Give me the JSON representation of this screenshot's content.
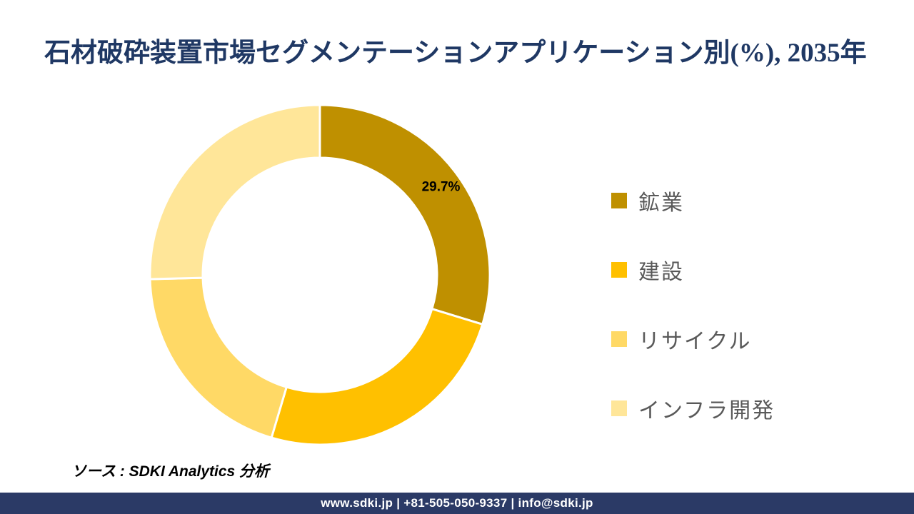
{
  "title": {
    "text": "石材破砕装置市場セグメンテーションアプリケーション別(%), 2035年",
    "color": "#1F3864"
  },
  "chart_data": {
    "type": "pie",
    "subtype": "donut",
    "title": "石材破砕装置市場セグメンテーションアプリケーション別(%), 2035年",
    "categories": [
      "鉱業",
      "建設",
      "リサイクル",
      "インフラ開発"
    ],
    "values": [
      29.7,
      24.9,
      20.0,
      25.4
    ],
    "unit": "%",
    "colors": [
      "#BF9000",
      "#FFC000",
      "#FFD966",
      "#FFE699"
    ],
    "data_labels": [
      "29.7%",
      "",
      "",
      ""
    ],
    "start_angle_deg": 0,
    "direction": "clockwise",
    "inner_radius_ratio": 0.68,
    "legend_position": "right",
    "note": "only the first segment (鉱業) has a visible data label; other values estimated from arc angles"
  },
  "legend": {
    "text_color": "#595959",
    "items": [
      {
        "label": "鉱業",
        "color": "#BF9000"
      },
      {
        "label": "建設",
        "color": "#FFC000"
      },
      {
        "label": "リサイクル",
        "color": "#FFD966"
      },
      {
        "label": "インフラ開発",
        "color": "#FFE699"
      }
    ]
  },
  "source": {
    "text": "ソース : SDKI Analytics 分析"
  },
  "footer": {
    "text": "www.sdki.jp | +81-505-050-9337 | info@sdki.jp",
    "background": "#2B3A66",
    "text_color": "#FFFFFF"
  }
}
